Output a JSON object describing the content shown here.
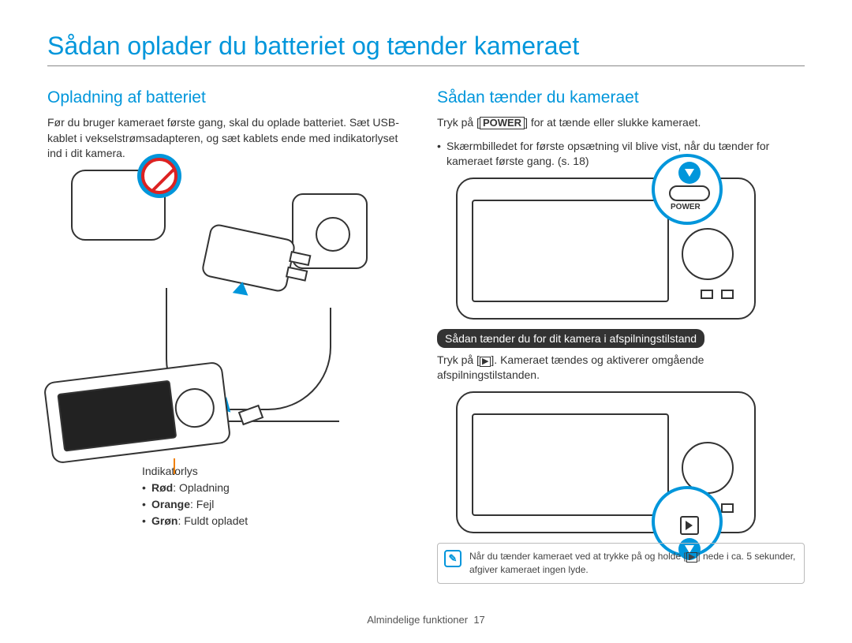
{
  "colors": {
    "accent": "#0096db",
    "text": "#333333",
    "orange_tick": "#f08000",
    "prohibit_red": "#d22222"
  },
  "page_title": "Sådan oplader du batteriet og tænder kameraet",
  "left": {
    "heading": "Opladning af batteriet",
    "paragraph": "Før du bruger kameraet første gang, skal du oplade batteriet. Sæt USB-kablet i vekselstrømsadapteren, og sæt kablets ende med indikatorlyset ind i dit kamera.",
    "indicator_label": "Indikatorlys",
    "indicators": [
      {
        "color_label": "Rød",
        "meaning": "Opladning"
      },
      {
        "color_label": "Orange",
        "meaning": "Fejl"
      },
      {
        "color_label": "Grøn",
        "meaning": "Fuldt opladet"
      }
    ]
  },
  "right": {
    "heading": "Sådan tænder du kameraet",
    "line1_pre": "Tryk på [",
    "power_button_label": "POWER",
    "line1_post": "] for at tænde eller slukke kameraet.",
    "bullet1": "Skærmbilledet for første opsætning vil blive vist, når du tænder for kameraet første gang. (s. 18)",
    "power_callout_label": "POWER",
    "pill": "Sådan tænder du for dit kamera i afspilningstilstand",
    "line2_pre": "Tryk på [",
    "play_glyph": "▶",
    "line2_post": "]. Kameraet tændes og aktiverer omgående afspilningstilstanden.",
    "note_pre": "Når du tænder kameraet ved at trykke på og holde [",
    "note_glyph": "▶",
    "note_post": "] nede i ca. 5 sekunder, afgiver kameraet ingen lyde."
  },
  "footer": {
    "section": "Almindelige funktioner",
    "page": "17"
  }
}
